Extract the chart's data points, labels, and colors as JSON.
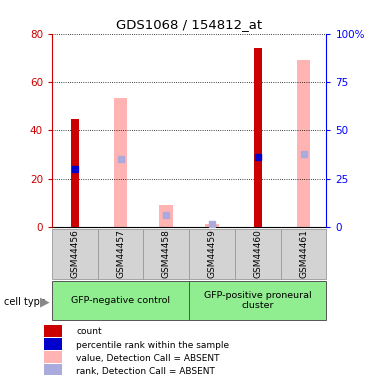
{
  "title": "GDS1068 / 154812_at",
  "samples": [
    "GSM44456",
    "GSM44457",
    "GSM44458",
    "GSM44459",
    "GSM44460",
    "GSM44461"
  ],
  "red_bars": [
    44.5,
    0,
    0,
    0,
    74,
    0
  ],
  "pink_bars": [
    0,
    53.5,
    9,
    1,
    0,
    69
  ],
  "blue_markers": [
    24,
    0,
    0,
    0,
    29,
    0
  ],
  "purple_markers": [
    0,
    28,
    5,
    1,
    0,
    30
  ],
  "ylim_left": [
    0,
    80
  ],
  "ylim_right": [
    0,
    100
  ],
  "yticks_left": [
    0,
    20,
    40,
    60,
    80
  ],
  "yticks_right": [
    0,
    25,
    50,
    75,
    100
  ],
  "ytick_right_labels": [
    "0",
    "25",
    "50",
    "75",
    "100%"
  ],
  "groups": [
    {
      "label": "GFP-negative control",
      "start": 0,
      "end": 3
    },
    {
      "label": "GFP-positive proneural\ncluster",
      "start": 3,
      "end": 6
    }
  ],
  "red_color": "#cc0000",
  "pink_color": "#ffb3b3",
  "blue_color": "#0000cc",
  "purple_color": "#aaaadd",
  "legend_items": [
    {
      "label": "count",
      "color": "#cc0000"
    },
    {
      "label": "percentile rank within the sample",
      "color": "#0000cc"
    },
    {
      "label": "value, Detection Call = ABSENT",
      "color": "#ffb3b3"
    },
    {
      "label": "rank, Detection Call = ABSENT",
      "color": "#aaaadd"
    }
  ]
}
